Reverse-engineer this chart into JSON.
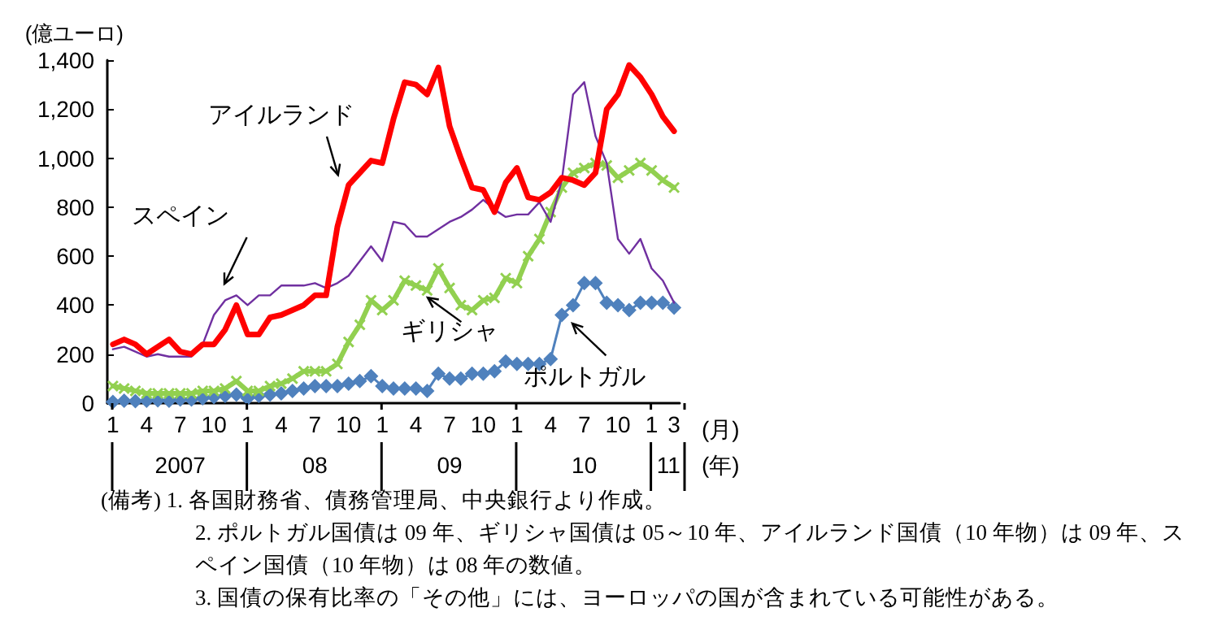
{
  "chart_data": {
    "type": "line",
    "ylabel": "(億ユーロ)",
    "xlabel": "(月)",
    "categories": [
      "1",
      null,
      null,
      "4",
      null,
      null,
      "7",
      null,
      null,
      "10",
      null,
      null,
      "1",
      null,
      null,
      "4",
      null,
      null,
      "7",
      null,
      null,
      "10",
      null,
      null,
      "1",
      null,
      null,
      "4",
      null,
      null,
      "7",
      null,
      null,
      "10",
      null,
      null,
      "1",
      null,
      null,
      "4",
      null,
      null,
      "7",
      null,
      null,
      "10",
      null,
      null,
      "1",
      null,
      "3"
    ],
    "series": [
      {
        "name": "アイルランド",
        "color": "#ff0000",
        "marker": "none",
        "values": [
          240,
          260,
          240,
          200,
          230,
          260,
          210,
          200,
          240,
          240,
          300,
          400,
          280,
          280,
          350,
          360,
          380,
          400,
          440,
          440,
          720,
          890,
          940,
          990,
          980,
          1160,
          1310,
          1300,
          1260,
          1370,
          1130,
          1000,
          880,
          870,
          780,
          900,
          960,
          840,
          830,
          860,
          920,
          910,
          890,
          940,
          1200,
          1260,
          1380,
          1330,
          1260,
          1170,
          1110
        ]
      },
      {
        "name": "スペイン",
        "color": "#7030a0",
        "marker": "none",
        "values": [
          220,
          230,
          210,
          190,
          200,
          190,
          190,
          190,
          240,
          360,
          420,
          440,
          400,
          440,
          440,
          480,
          480,
          480,
          490,
          470,
          490,
          520,
          580,
          640,
          580,
          740,
          730,
          680,
          680,
          710,
          740,
          760,
          790,
          830,
          790,
          760,
          770,
          770,
          820,
          740,
          910,
          1260,
          1310,
          1090,
          980,
          670,
          610,
          670,
          550,
          500,
          410
        ]
      },
      {
        "name": "ギリシャ",
        "color": "#92d050",
        "marker": "cross",
        "values": [
          70,
          60,
          50,
          40,
          40,
          40,
          40,
          40,
          50,
          50,
          60,
          90,
          50,
          50,
          70,
          80,
          100,
          130,
          130,
          130,
          160,
          250,
          320,
          420,
          380,
          420,
          500,
          480,
          460,
          550,
          470,
          400,
          380,
          420,
          430,
          510,
          490,
          600,
          670,
          780,
          880,
          940,
          960,
          980,
          970,
          920,
          950,
          980,
          950,
          910,
          880
        ]
      },
      {
        "name": "ポルトガル",
        "color": "#4f81bd",
        "marker": "diamond",
        "values": [
          5,
          10,
          8,
          10,
          12,
          10,
          15,
          15,
          20,
          25,
          30,
          35,
          20,
          30,
          35,
          40,
          50,
          60,
          70,
          70,
          70,
          80,
          90,
          110,
          70,
          60,
          60,
          60,
          50,
          120,
          100,
          100,
          120,
          120,
          130,
          170,
          160,
          160,
          160,
          180,
          360,
          400,
          490,
          490,
          410,
          400,
          380,
          410,
          410,
          410,
          390
        ]
      }
    ],
    "ylim": [
      0,
      1400
    ],
    "yticks": [
      0,
      200,
      400,
      600,
      800,
      {
        "value": 1000,
        "label": "1,000"
      },
      {
        "value": 1200,
        "label": "1,200"
      },
      {
        "value": 1400,
        "label": "1,400"
      }
    ],
    "grid": false,
    "legend": false,
    "annotations": [
      "2007",
      "08",
      "09",
      "10",
      "11",
      "(年)",
      "(備考) 1. 各国財務省、債務管理局、中央銀行より作成。",
      "2. ポルトガル国債は 09 年、ギリシャ国債は 05～10 年、アイルランド国債（10 年物）は 09 年、スペイン国債（10 年物）は 08 年の数値。",
      "3. 国債の保有比率の「その他」には、ヨーロッパの国が含まれている可能性がある。"
    ]
  }
}
